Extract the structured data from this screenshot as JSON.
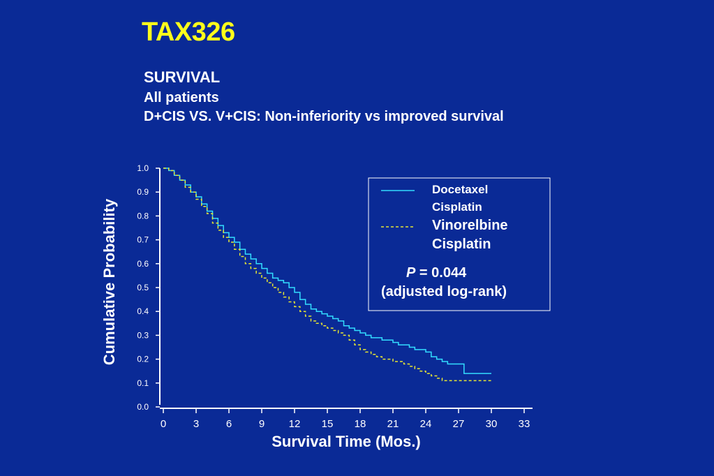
{
  "header": {
    "title": "TAX326",
    "subtitle_line1": "SURVIVAL",
    "subtitle_line2": "All patients",
    "subtitle_line3": "D+CIS VS. V+CIS: Non-inferiority vs improved survival"
  },
  "colors": {
    "background": "#0a2a96",
    "title": "#ffff1a",
    "docetaxel_line": "#33ddff",
    "vinorelbine_line": "#e6e633"
  },
  "chart_data": {
    "type": "line",
    "xlabel": "Survival Time (Mos.)",
    "ylabel": "Cumulative Probability",
    "xlim": [
      0,
      33
    ],
    "ylim": [
      0,
      1.0
    ],
    "x_ticks": [
      "0",
      "3",
      "6",
      "9",
      "12",
      "15",
      "18",
      "21",
      "24",
      "27",
      "30",
      "33"
    ],
    "y_ticks": [
      "0.0",
      "0.1",
      "0.2",
      "0.3",
      "0.4",
      "0.5",
      "0.6",
      "0.7",
      "0.8",
      "0.9",
      "1.0"
    ],
    "step": true,
    "legend_position": "top-right",
    "series": [
      {
        "name_line1": "Docetaxel",
        "name_line2": "Cisplatin",
        "style": "solid",
        "x": [
          0,
          0.5,
          1,
          1.5,
          2,
          2.5,
          3,
          3.5,
          4,
          4.5,
          5,
          5.5,
          6,
          6.5,
          7,
          7.5,
          8,
          8.5,
          9,
          9.5,
          10,
          10.5,
          11,
          11.5,
          12,
          12.5,
          13,
          13.5,
          14,
          14.5,
          15,
          15.5,
          16,
          16.5,
          17,
          17.5,
          18,
          18.5,
          19,
          19.5,
          20,
          20.5,
          21,
          21.5,
          22,
          22.5,
          23,
          23.5,
          24,
          24.5,
          25,
          25.5,
          26,
          26.5,
          27,
          27.5,
          28,
          28.5,
          29,
          29.5,
          30
        ],
        "y": [
          1.0,
          0.99,
          0.97,
          0.95,
          0.93,
          0.9,
          0.88,
          0.85,
          0.82,
          0.79,
          0.76,
          0.73,
          0.71,
          0.69,
          0.66,
          0.64,
          0.62,
          0.6,
          0.58,
          0.56,
          0.54,
          0.53,
          0.52,
          0.5,
          0.48,
          0.45,
          0.43,
          0.41,
          0.4,
          0.39,
          0.38,
          0.37,
          0.36,
          0.34,
          0.33,
          0.32,
          0.31,
          0.3,
          0.29,
          0.29,
          0.28,
          0.28,
          0.27,
          0.26,
          0.26,
          0.25,
          0.24,
          0.24,
          0.23,
          0.21,
          0.2,
          0.19,
          0.18,
          0.18,
          0.18,
          0.14,
          0.14,
          0.14,
          0.14,
          0.14,
          0.14
        ]
      },
      {
        "name_line1": "Vinorelbine",
        "name_line2": "Cisplatin",
        "style": "dashed",
        "x": [
          0,
          0.5,
          1,
          1.5,
          2,
          2.5,
          3,
          3.5,
          4,
          4.5,
          5,
          5.5,
          6,
          6.5,
          7,
          7.5,
          8,
          8.5,
          9,
          9.5,
          10,
          10.5,
          11,
          11.5,
          12,
          12.5,
          13,
          13.5,
          14,
          14.5,
          15,
          15.5,
          16,
          16.5,
          17,
          17.5,
          18,
          18.5,
          19,
          19.5,
          20,
          20.5,
          21,
          21.5,
          22,
          22.5,
          23,
          23.5,
          24,
          24.5,
          25,
          25.5,
          26,
          26.5,
          27,
          27.5,
          28,
          28.5,
          29,
          29.5,
          30
        ],
        "y": [
          1.0,
          0.99,
          0.97,
          0.95,
          0.92,
          0.9,
          0.87,
          0.84,
          0.81,
          0.77,
          0.74,
          0.71,
          0.69,
          0.66,
          0.63,
          0.6,
          0.58,
          0.56,
          0.54,
          0.52,
          0.5,
          0.48,
          0.46,
          0.44,
          0.42,
          0.4,
          0.38,
          0.36,
          0.35,
          0.34,
          0.33,
          0.32,
          0.31,
          0.3,
          0.28,
          0.26,
          0.24,
          0.23,
          0.22,
          0.21,
          0.2,
          0.2,
          0.19,
          0.19,
          0.18,
          0.17,
          0.16,
          0.15,
          0.14,
          0.13,
          0.12,
          0.11,
          0.11,
          0.11,
          0.11,
          0.11,
          0.11,
          0.11,
          0.11,
          0.11,
          0.11
        ]
      }
    ],
    "annotation_p_label": "P",
    "annotation_p_value": " = 0.044",
    "annotation_method": "(adjusted log-rank)"
  }
}
